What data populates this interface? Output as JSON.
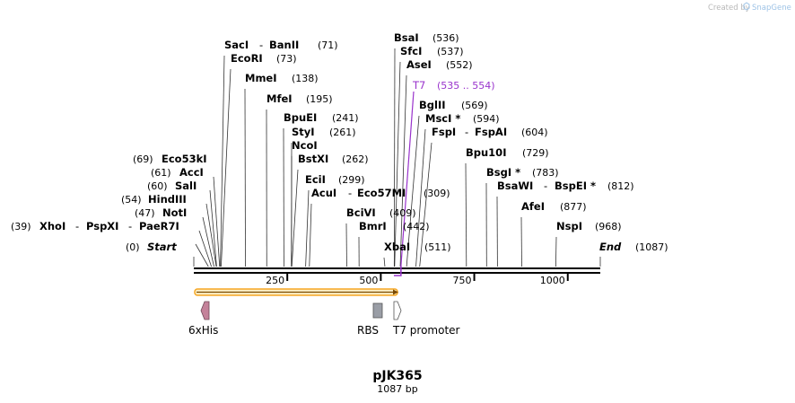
{
  "branding": {
    "created_by": "Created by",
    "product": "SnapGene"
  },
  "plasmid": {
    "name": "pJK365",
    "length_label": "1087 bp",
    "length_bp": 1087
  },
  "axis": {
    "ticks": [
      250,
      500,
      750,
      1000
    ],
    "tick_labels": [
      "250",
      "500",
      "750",
      "1000"
    ]
  },
  "ends": {
    "start": {
      "label": "Start",
      "num": "(0)"
    },
    "end": {
      "label": "End",
      "num": "(1087)"
    }
  },
  "primer": {
    "label": "T7",
    "range": "(535 .. 554)",
    "start_bp": 535,
    "end_bp": 554,
    "color": "#9933cc"
  },
  "left_sites": [
    {
      "names": [
        "Eco53kI"
      ],
      "num": "(69)",
      "bp": 69
    },
    {
      "names": [
        "AccI"
      ],
      "num": "(61)",
      "bp": 61
    },
    {
      "names": [
        "SalI"
      ],
      "num": "(60)",
      "bp": 60
    },
    {
      "names": [
        "HindIII"
      ],
      "num": "(54)",
      "bp": 54
    },
    {
      "names": [
        "NotI"
      ],
      "num": "(47)",
      "bp": 47
    },
    {
      "names": [
        "XhoI",
        "PspXI",
        "PaeR7I"
      ],
      "num": "(39)",
      "bp": 39
    }
  ],
  "right_sites": [
    {
      "names": [
        "SacI",
        "BanII"
      ],
      "num": "(71)",
      "bp": 71
    },
    {
      "names": [
        "EcoRI"
      ],
      "num": "(73)",
      "bp": 73
    },
    {
      "names": [
        "MmeI"
      ],
      "num": "(138)",
      "bp": 138
    },
    {
      "names": [
        "MfeI"
      ],
      "num": "(195)",
      "bp": 195
    },
    {
      "names": [
        "BpuEI"
      ],
      "num": "(241)",
      "bp": 241
    },
    {
      "names": [
        "StyI"
      ],
      "num": "(261)",
      "bp": 261
    },
    {
      "names": [
        "NcoI"
      ],
      "num": "",
      "bp": 261
    },
    {
      "names": [
        "BstXI"
      ],
      "num": "(262)",
      "bp": 262
    },
    {
      "names": [
        "EciI"
      ],
      "num": "(299)",
      "bp": 299
    },
    {
      "names": [
        "AcuI",
        "Eco57MI"
      ],
      "num": "(309)",
      "bp": 309
    },
    {
      "names": [
        "BciVI"
      ],
      "num": "(409)",
      "bp": 409
    },
    {
      "names": [
        "BmrI"
      ],
      "num": "(442)",
      "bp": 442
    },
    {
      "names": [
        "XbaI"
      ],
      "num": "(511)",
      "bp": 511
    },
    {
      "names": [
        "BsaI"
      ],
      "num": "(536)",
      "bp": 536
    },
    {
      "names": [
        "SfcI"
      ],
      "num": "(537)",
      "bp": 537
    },
    {
      "names": [
        "AseI"
      ],
      "num": "(552)",
      "bp": 552
    },
    {
      "names": [
        "BglII"
      ],
      "num": "(569)",
      "bp": 569
    },
    {
      "names": [
        "MscI *"
      ],
      "num": "(594)",
      "bp": 594
    },
    {
      "names": [
        "FspI",
        "FspAI"
      ],
      "num": "(604)",
      "bp": 604
    },
    {
      "names": [
        "Bpu10I"
      ],
      "num": "(729)",
      "bp": 729
    },
    {
      "names": [
        "BsgI *"
      ],
      "num": "(783)",
      "bp": 783
    },
    {
      "names": [
        "BsaWI",
        "BspEI *"
      ],
      "num": "(812)",
      "bp": 812
    },
    {
      "names": [
        "AfeI"
      ],
      "num": "(877)",
      "bp": 877
    },
    {
      "names": [
        "NspI"
      ],
      "num": "(968)",
      "bp": 968
    }
  ],
  "features": [
    {
      "label": "6xHis",
      "color": "#c4829a",
      "shape": "arrow-left"
    },
    {
      "label": "RBS",
      "color": "#9a9ea6",
      "shape": "box"
    },
    {
      "label": "T7 promoter",
      "color": "#ffffff",
      "shape": "arrow-right"
    }
  ],
  "orf_color": "#f5a623"
}
